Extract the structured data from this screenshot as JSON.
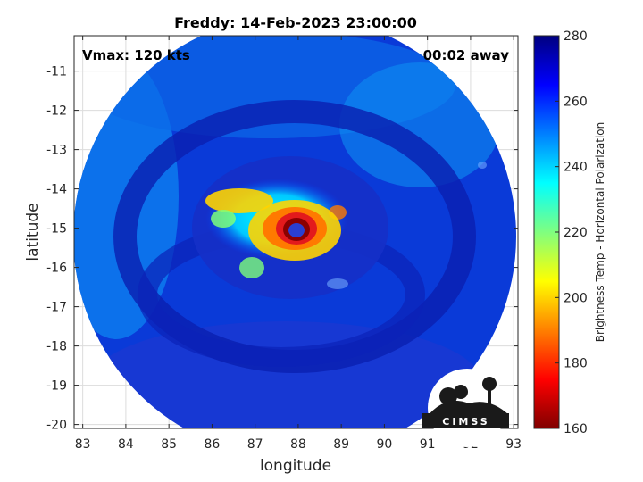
{
  "chart_data": {
    "type": "heatmap",
    "title": "Freddy: 14-Feb-2023 23:00:00",
    "xlabel": "longitude",
    "ylabel": "latitude",
    "xlim": [
      82.8,
      93.1
    ],
    "ylim": [
      -20.1,
      -10.1
    ],
    "xticks": [
      83,
      84,
      85,
      86,
      87,
      88,
      89,
      90,
      91,
      92,
      93
    ],
    "yticks": [
      -11,
      -12,
      -13,
      -14,
      -15,
      -16,
      -17,
      -18,
      -19,
      -20
    ],
    "grid": true,
    "annotations": {
      "vmax": "Vmax: 120 kts",
      "away": "00:02 away"
    },
    "storm_center": {
      "lon": 87.8,
      "lat": -15.1
    },
    "colorbar": {
      "label": "Brightness Temp - Horizontal Polarization",
      "min": 160,
      "max": 280,
      "ticks": [
        160,
        180,
        200,
        220,
        240,
        260,
        280
      ],
      "colormap": "jet",
      "placement": "right"
    }
  },
  "logo": {
    "text": "CIMSS"
  }
}
